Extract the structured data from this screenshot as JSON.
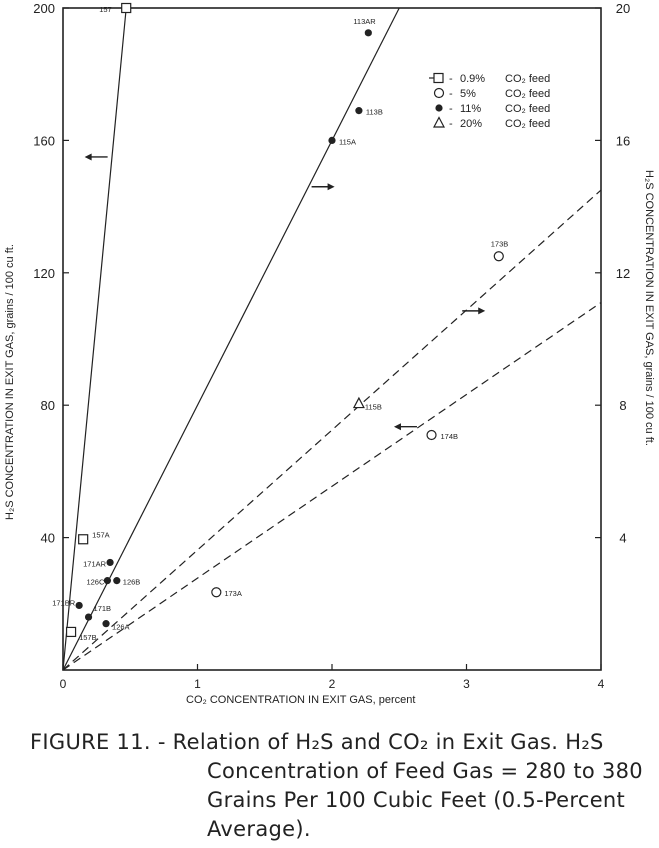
{
  "chart_data": {
    "type": "scatter",
    "xlabel": "CO₂ CONCENTRATION IN EXIT GAS, percent",
    "ylabel_left": "H₂S CONCENTRATION IN EXIT GAS, grains / 100 cu ft.",
    "ylabel_right": "H₂S CONCENTRATION IN EXIT GAS, grains / 100 cu ft.",
    "xlim": [
      0,
      4
    ],
    "ylim_left": [
      0,
      200
    ],
    "ylim_right": [
      0,
      20
    ],
    "x_ticks": [
      "0",
      "1",
      "2",
      "3",
      "4"
    ],
    "y_ticks_left": [
      "40",
      "80",
      "120",
      "160",
      "200"
    ],
    "y_ticks_right": [
      "4",
      "8",
      "12",
      "16",
      "20"
    ],
    "legend": {
      "placement": "top-right",
      "entries": [
        {
          "marker": "square",
          "pct": "0.9%",
          "label": "CO₂ feed"
        },
        {
          "marker": "circle-open",
          "pct": "5%",
          "label": "CO₂ feed"
        },
        {
          "marker": "circle-filled",
          "pct": "11%",
          "label": "CO₂ feed"
        },
        {
          "marker": "triangle",
          "pct": "20%",
          "label": "CO₂ feed"
        }
      ]
    },
    "series": [
      {
        "marker": "square",
        "points": [
          {
            "x": 0.47,
            "y": 200,
            "label": "157"
          },
          {
            "x": 0.15,
            "y": 39.5,
            "label": "157A"
          },
          {
            "x": 0.06,
            "y": 11.5,
            "label": "157B"
          }
        ]
      },
      {
        "marker": "circle-open",
        "points": [
          {
            "x": 3.24,
            "y": 125,
            "label": "173B"
          },
          {
            "x": 2.74,
            "y": 71,
            "label": "174B"
          },
          {
            "x": 1.14,
            "y": 23.5,
            "label": "173A"
          }
        ]
      },
      {
        "marker": "circle-filled",
        "points": [
          {
            "x": 2.27,
            "y": 192.5,
            "label": "113AR"
          },
          {
            "x": 2.2,
            "y": 169,
            "label": "113B"
          },
          {
            "x": 2.0,
            "y": 160,
            "label": "115A"
          },
          {
            "x": 0.35,
            "y": 32.5,
            "label": "171AR"
          },
          {
            "x": 0.33,
            "y": 27,
            "label": "126C"
          },
          {
            "x": 0.4,
            "y": 27,
            "label": "126B"
          },
          {
            "x": 0.12,
            "y": 19.5,
            "label": "171BR"
          },
          {
            "x": 0.19,
            "y": 16,
            "label": "171B"
          },
          {
            "x": 0.32,
            "y": 14,
            "label": "126A"
          }
        ]
      },
      {
        "marker": "triangle",
        "points": [
          {
            "x": 2.2,
            "y": 80.5,
            "label": "115B"
          }
        ]
      }
    ],
    "fit_lines": [
      {
        "style": "solid",
        "axis": "left",
        "from": [
          0,
          0
        ],
        "to": [
          0.47,
          200
        ]
      },
      {
        "style": "solid",
        "axis": "right",
        "from": [
          0,
          0
        ],
        "to": [
          2.5,
          20
        ]
      },
      {
        "style": "dashed",
        "axis": "right",
        "from": [
          0,
          0
        ],
        "to": [
          4,
          14.5
        ]
      },
      {
        "style": "dashed",
        "axis": "left",
        "from": [
          0,
          0
        ],
        "to": [
          4,
          111
        ]
      }
    ],
    "axis_arrows": [
      {
        "direction": "left",
        "x": 0.25,
        "y": 155
      },
      {
        "direction": "right",
        "x": 1.93,
        "y": 146
      },
      {
        "direction": "right",
        "x": 3.05,
        "y": 108.5
      },
      {
        "direction": "left",
        "x": 2.55,
        "y": 73.5
      }
    ]
  },
  "caption": {
    "line1": "FIGURE 11. - Relation of H₂S and CO₂ in Exit Gas.  H₂S",
    "line2": "Concentration of Feed Gas = 280 to 380",
    "line3": "Grains Per 100 Cubic Feet (0.5-Percent",
    "line4": "Average)."
  }
}
